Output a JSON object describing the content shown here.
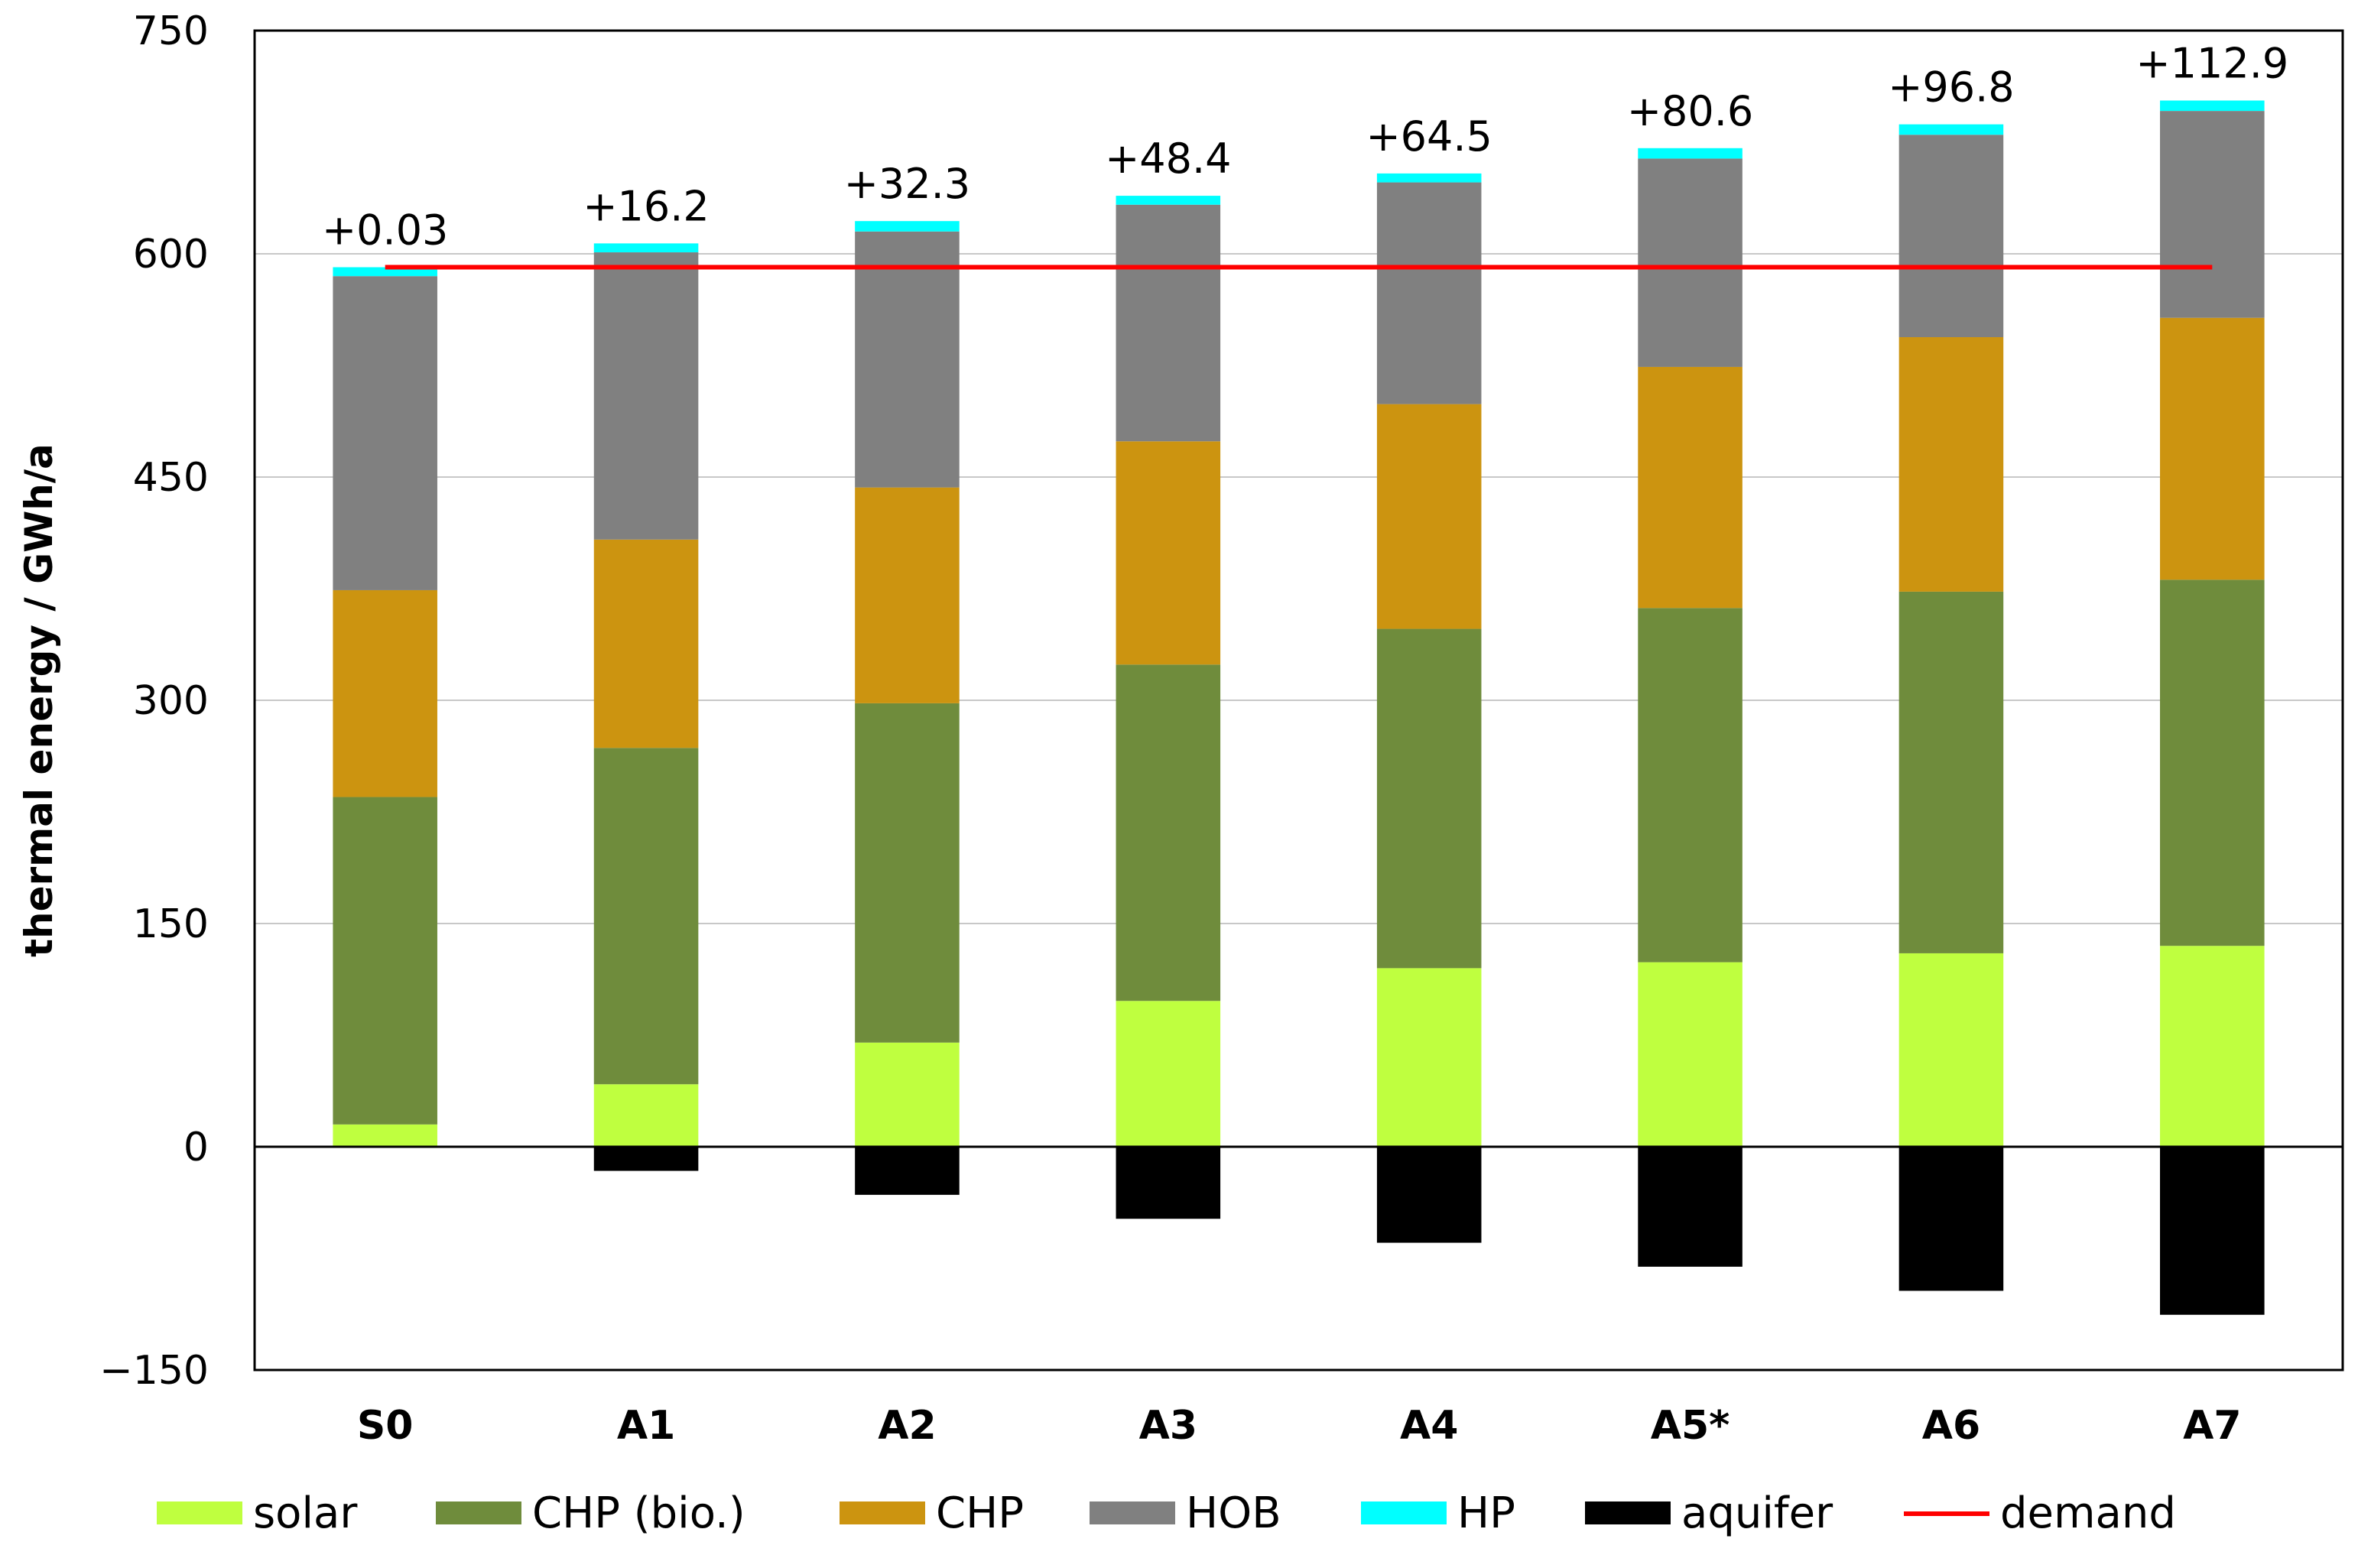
{
  "chart_data": {
    "type": "bar",
    "stacked": true,
    "title": "",
    "xlabel": "",
    "ylabel": "thermal energy / GWh/a",
    "ylim": [
      -150,
      750
    ],
    "yticks": [
      "750",
      "600",
      "450",
      "300",
      "150",
      "0",
      "−150"
    ],
    "ytick_values": [
      750,
      600,
      450,
      300,
      150,
      0,
      -150
    ],
    "grid": true,
    "legend_position": "bottom",
    "categories": [
      "S0",
      "A1",
      "A2",
      "A3",
      "A4",
      "A5*",
      "A6",
      "A7"
    ],
    "series": [
      {
        "name": "solar",
        "color": "#bfff3f",
        "values": [
          15,
          42,
          70,
          98,
          120,
          124,
          130,
          135
        ]
      },
      {
        "name": "CHP (bio.)",
        "color": "#6f8c3c",
        "values": [
          220,
          226,
          228,
          226,
          228,
          238,
          243,
          246
        ]
      },
      {
        "name": "CHP",
        "color": "#cc9410",
        "values": [
          139,
          140,
          145,
          150,
          151,
          162,
          171,
          176
        ]
      },
      {
        "name": "HOB",
        "color": "#808080",
        "values": [
          211,
          193,
          172,
          159,
          149,
          140,
          136,
          139
        ]
      },
      {
        "name": "HP",
        "color": "#00ffff",
        "values": [
          6,
          6,
          7,
          6,
          6,
          7,
          7,
          7
        ]
      },
      {
        "name": "aquifer",
        "color": "#000000",
        "values": [
          0,
          -16.2,
          -32.3,
          -48.4,
          -64.5,
          -80.6,
          -96.8,
          -112.9
        ]
      }
    ],
    "demand": {
      "name": "demand",
      "color": "#ff0000",
      "value": 591
    },
    "data_labels": [
      "+0.03",
      "+16.2",
      "+32.3",
      "+48.4",
      "+64.5",
      "+80.6",
      "+96.8",
      "+112.9"
    ]
  }
}
